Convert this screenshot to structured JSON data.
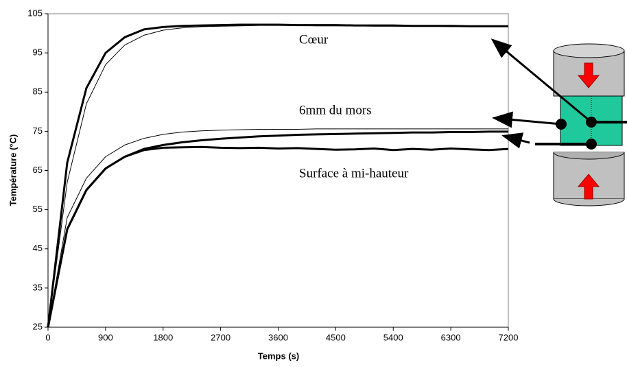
{
  "chart_data": {
    "type": "line",
    "x_label": "Temps (s)",
    "y_label": "Température (°C)",
    "x": [
      0,
      300,
      600,
      900,
      1200,
      1500,
      1800,
      2100,
      2400,
      2700,
      3000,
      3300,
      3600,
      3900,
      4200,
      4500,
      4800,
      5100,
      5400,
      5700,
      6000,
      6300,
      6600,
      6900,
      7200
    ],
    "series": [
      {
        "color": "#000000",
        "values": [
          25,
          67,
          86,
          95,
          99,
          101,
          101.6,
          101.9,
          102,
          102.1,
          102.2,
          102.2,
          102.2,
          102.1,
          102.1,
          102.1,
          102,
          102,
          102,
          101.9,
          101.9,
          101.9,
          101.8,
          101.8,
          101.8
        ]
      },
      {
        "color": "#000000",
        "values": [
          25,
          62,
          82,
          92,
          97,
          99.5,
          100.8,
          101.4,
          101.7,
          101.8,
          101.9,
          102,
          102,
          102,
          101.9,
          101.9,
          101.9,
          101.8,
          101.8,
          101.8,
          101.8,
          101.7,
          101.7,
          101.7,
          101.7
        ]
      },
      {
        "color": "#000000",
        "values": [
          25,
          50,
          60,
          65.5,
          68.5,
          70.5,
          71.5,
          72.2,
          72.7,
          73.1,
          73.4,
          73.7,
          73.9,
          74.1,
          74.2,
          74.3,
          74.4,
          74.5,
          74.6,
          74.7,
          74.7,
          74.8,
          74.8,
          74.9,
          74.9
        ]
      },
      {
        "color": "#000000",
        "values": [
          25,
          53,
          63,
          68.5,
          71.5,
          73.2,
          74.2,
          74.8,
          75.1,
          75.3,
          75.4,
          75.5,
          75.5,
          75.5,
          75.6,
          75.6,
          75.6,
          75.6,
          75.6,
          75.6,
          75.6,
          75.6,
          75.6,
          75.6,
          75.6
        ]
      },
      {
        "color": "#000000",
        "values": [
          25,
          50,
          60,
          65.5,
          68.5,
          70.2,
          70.8,
          70.9,
          71,
          70.8,
          70.7,
          70.8,
          70.6,
          70.7,
          70.5,
          70.3,
          70.4,
          70.6,
          70.2,
          70.5,
          70.3,
          70.6,
          70.4,
          70.2,
          70.5
        ]
      }
    ],
    "widths": [
      3,
      1,
      3,
      1,
      3
    ],
    "xlim": [
      0,
      7200
    ],
    "xticks": [
      0,
      900,
      1800,
      2700,
      3600,
      4500,
      5400,
      6300,
      7200
    ],
    "ylim": [
      25,
      105
    ],
    "yticks": [
      25,
      35,
      45,
      55,
      65,
      75,
      85,
      95,
      105
    ],
    "annotations": [
      "Cœur",
      "6mm du mors",
      "Surface à mi-hauteur"
    ]
  }
}
